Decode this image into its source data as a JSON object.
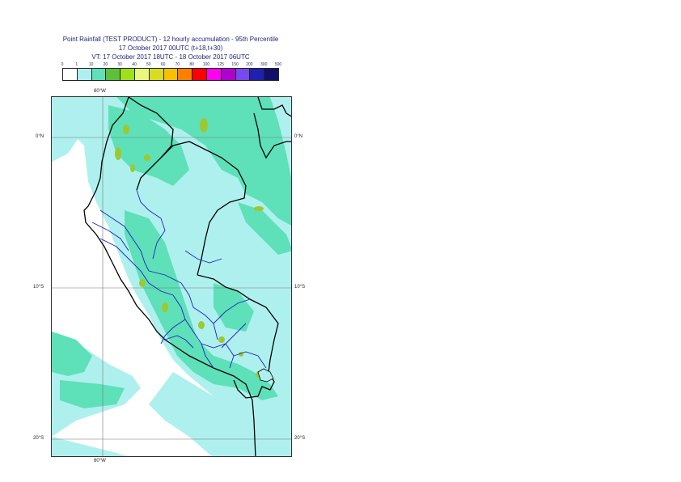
{
  "title": {
    "line1": "Point Rainfall (TEST PRODUCT) - 12 hourly accumulation - 95th Percentile",
    "line2": "17 October 2017 00UTC (t+18,t+30)",
    "line3": "VT: 17 October 2017 18UTC - 18 October 2017 06UTC"
  },
  "legend": {
    "thresholds": [
      "0",
      "1",
      "10",
      "20",
      "30",
      "40",
      "50",
      "60",
      "70",
      "80",
      "100",
      "125",
      "150",
      "200",
      "300",
      "500"
    ],
    "colors": [
      "#ffffff",
      "#aef0ee",
      "#5ee0b8",
      "#5cc038",
      "#9ee01a",
      "#e8f87a",
      "#d8dc20",
      "#f8c000",
      "#ff8000",
      "#ff0000",
      "#ff00f0",
      "#b000d0",
      "#7848f0",
      "#2020b0",
      "#10106a"
    ]
  },
  "map": {
    "lon_top": "80°W",
    "lon_bottom": "80°W",
    "lat_labels_left": [
      "0°N",
      "10°S",
      "20°S"
    ],
    "lat_labels_right": [
      "0°N",
      "10°S",
      "20°S"
    ],
    "background_rain_color": "#aef0ee",
    "mid_rain_color": "#5ee0b8",
    "heavy_rain_color": "#9ec832",
    "coast_color": "#000000",
    "admin_border_color": "#2020c0"
  }
}
